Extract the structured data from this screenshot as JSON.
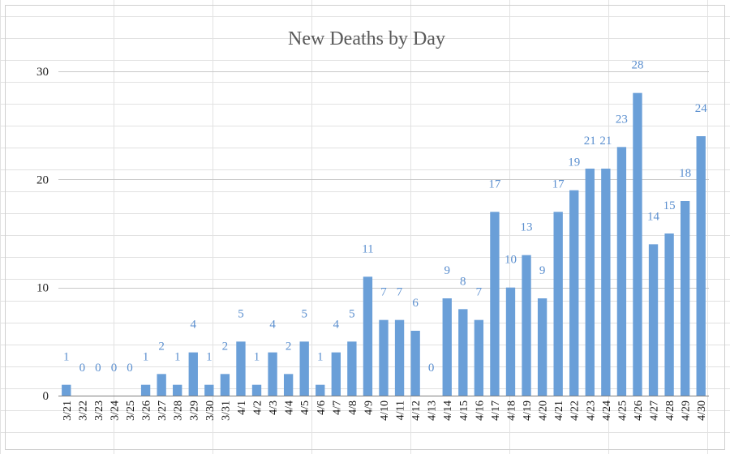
{
  "chart_data": {
    "type": "bar",
    "title": "New Deaths by Day",
    "xlabel": "",
    "ylabel": "",
    "ylim": [
      0,
      30
    ],
    "yticks": [
      0,
      10,
      20,
      30
    ],
    "grid": true,
    "data_labels": true,
    "categories": [
      "3/21",
      "3/22",
      "3/23",
      "3/24",
      "3/25",
      "3/26",
      "3/27",
      "3/28",
      "3/29",
      "3/30",
      "3/31",
      "4/1",
      "4/2",
      "4/3",
      "4/4",
      "4/5",
      "4/6",
      "4/7",
      "4/8",
      "4/9",
      "4/10",
      "4/11",
      "4/12",
      "4/13",
      "4/14",
      "4/15",
      "4/16",
      "4/17",
      "4/18",
      "4/19",
      "4/20",
      "4/21",
      "4/22",
      "4/23",
      "4/24",
      "4/25",
      "4/26",
      "4/27",
      "4/28",
      "4/29",
      "4/30"
    ],
    "values": [
      1,
      0,
      0,
      0,
      0,
      1,
      2,
      1,
      4,
      1,
      2,
      5,
      1,
      4,
      2,
      5,
      1,
      4,
      5,
      11,
      7,
      7,
      6,
      0,
      9,
      8,
      7,
      17,
      10,
      13,
      9,
      17,
      19,
      21,
      21,
      23,
      28,
      14,
      15,
      18,
      24
    ],
    "colors": {
      "bar": "#6a9fd8",
      "data_label": "#5b8fcf",
      "grid": "#c8c8c8",
      "title": "#595959"
    }
  }
}
